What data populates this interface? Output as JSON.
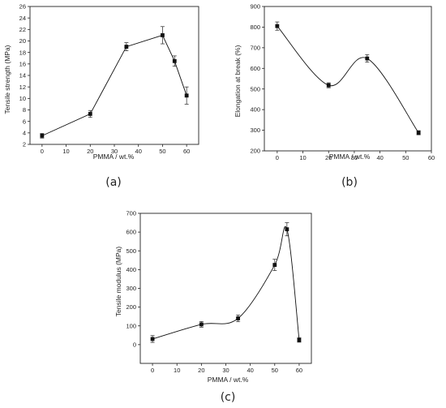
{
  "chart_data": [
    {
      "type": "line",
      "panel_label": "(a)",
      "xlabel": "PMMA / wt.%",
      "ylabel": "Tensile strength (MPa)",
      "xlim": [
        -5,
        65
      ],
      "ylim": [
        2,
        26
      ],
      "xticks": [
        0,
        10,
        20,
        30,
        40,
        50,
        60
      ],
      "yticks": [
        2,
        4,
        6,
        8,
        10,
        12,
        14,
        16,
        18,
        20,
        22,
        24,
        26
      ],
      "grid": false,
      "smooth": false,
      "series": [
        {
          "x": [
            0,
            20,
            35,
            50,
            55,
            60
          ],
          "y": [
            3.5,
            7.3,
            19.0,
            21.0,
            16.5,
            10.5
          ],
          "error": [
            0.4,
            0.6,
            0.7,
            1.5,
            0.9,
            1.5
          ]
        }
      ]
    },
    {
      "type": "line",
      "panel_label": "(b)",
      "xlabel": "PMMA / wt.%",
      "ylabel": "Elongation at break (%)",
      "xlim": [
        -5,
        60
      ],
      "ylim": [
        200,
        900
      ],
      "xticks": [
        0,
        10,
        20,
        30,
        40,
        50,
        60
      ],
      "yticks": [
        200,
        300,
        400,
        500,
        600,
        700,
        800,
        900
      ],
      "grid": false,
      "smooth": true,
      "series": [
        {
          "x": [
            0,
            20,
            35,
            55
          ],
          "y": [
            805,
            518,
            648,
            288
          ],
          "error": [
            20,
            12,
            18,
            10
          ]
        }
      ]
    },
    {
      "type": "line",
      "panel_label": "(c)",
      "xlabel": "PMMA / wt.%",
      "ylabel": "Tensile modulus (MPa)",
      "xlim": [
        -5,
        65
      ],
      "ylim": [
        -100,
        700
      ],
      "xticks": [
        0,
        10,
        20,
        30,
        40,
        50,
        60
      ],
      "yticks": [
        0,
        100,
        200,
        300,
        400,
        500,
        600,
        700
      ],
      "grid": false,
      "smooth": true,
      "series": [
        {
          "x": [
            0,
            20,
            35,
            50,
            55,
            60
          ],
          "y": [
            30,
            108,
            140,
            425,
            615,
            25
          ],
          "error": [
            18,
            15,
            18,
            30,
            35,
            12
          ]
        }
      ]
    }
  ]
}
